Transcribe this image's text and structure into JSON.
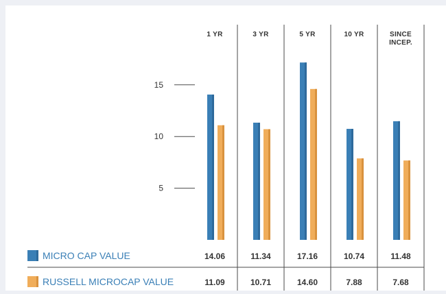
{
  "chart_data": {
    "type": "bar",
    "categories": [
      [
        "1 YR"
      ],
      [
        "3 YR"
      ],
      [
        "5 YR"
      ],
      [
        "10 YR"
      ],
      [
        "SINCE",
        "INCEP."
      ]
    ],
    "series": [
      {
        "name": "MICRO CAP VALUE",
        "values": [
          14.06,
          11.34,
          17.16,
          10.74,
          11.48
        ],
        "value_labels": [
          "14.06",
          "11.34",
          "17.16",
          "10.74",
          "11.48"
        ],
        "color": "#3a7fb6"
      },
      {
        "name": "RUSSELL MICROCAP VALUE",
        "values": [
          11.09,
          10.71,
          14.6,
          7.88,
          7.68
        ],
        "value_labels": [
          "11.09",
          "10.71",
          "14.60",
          "7.88",
          "7.68"
        ],
        "color": "#f0ad5a"
      }
    ],
    "yticks": [
      5,
      10,
      15
    ],
    "ylim": [
      0,
      20
    ],
    "grid": false,
    "legend_position": "bottom-left",
    "label_color": "#3a7fb6"
  }
}
